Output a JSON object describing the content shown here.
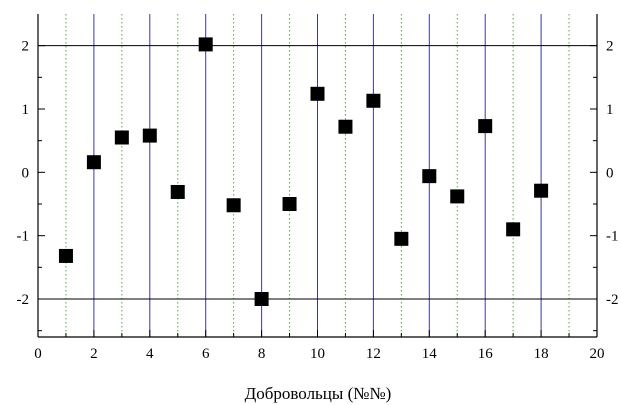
{
  "chart_data": {
    "type": "scatter",
    "xlabel": "Добровольцы (№№)",
    "ylabel": "",
    "xlim": [
      0,
      20
    ],
    "ylim": [
      -2.6,
      2.5
    ],
    "x_ticks": [
      0,
      2,
      4,
      6,
      8,
      10,
      12,
      14,
      16,
      18,
      20
    ],
    "y_ticks": [
      -2,
      -1,
      0,
      1,
      2
    ],
    "y_ticks_right": true,
    "reference_lines_y": [
      -2,
      2
    ],
    "grid_major_x": [
      2,
      4,
      6,
      8,
      10,
      12,
      14,
      16,
      18
    ],
    "grid_minor_x": [
      1,
      3,
      5,
      7,
      9,
      11,
      13,
      15,
      17,
      19
    ],
    "marker": "square",
    "colors": {
      "marker": "#000000",
      "major_grid": "#3a3a9a",
      "minor_grid": "#4caa4c",
      "reference_line": "#000000"
    },
    "points": [
      {
        "x": 1,
        "y": -1.32
      },
      {
        "x": 2,
        "y": 0.16
      },
      {
        "x": 3,
        "y": 0.55
      },
      {
        "x": 4,
        "y": 0.58
      },
      {
        "x": 5,
        "y": -0.31
      },
      {
        "x": 6,
        "y": 2.02
      },
      {
        "x": 7,
        "y": -0.52
      },
      {
        "x": 8,
        "y": -2.0
      },
      {
        "x": 9,
        "y": -0.5
      },
      {
        "x": 10,
        "y": 1.24
      },
      {
        "x": 11,
        "y": 0.72
      },
      {
        "x": 12,
        "y": 1.13
      },
      {
        "x": 13,
        "y": -1.05
      },
      {
        "x": 14,
        "y": -0.06
      },
      {
        "x": 15,
        "y": -0.38
      },
      {
        "x": 16,
        "y": 0.73
      },
      {
        "x": 17,
        "y": -0.9
      },
      {
        "x": 18,
        "y": -0.29
      }
    ]
  }
}
